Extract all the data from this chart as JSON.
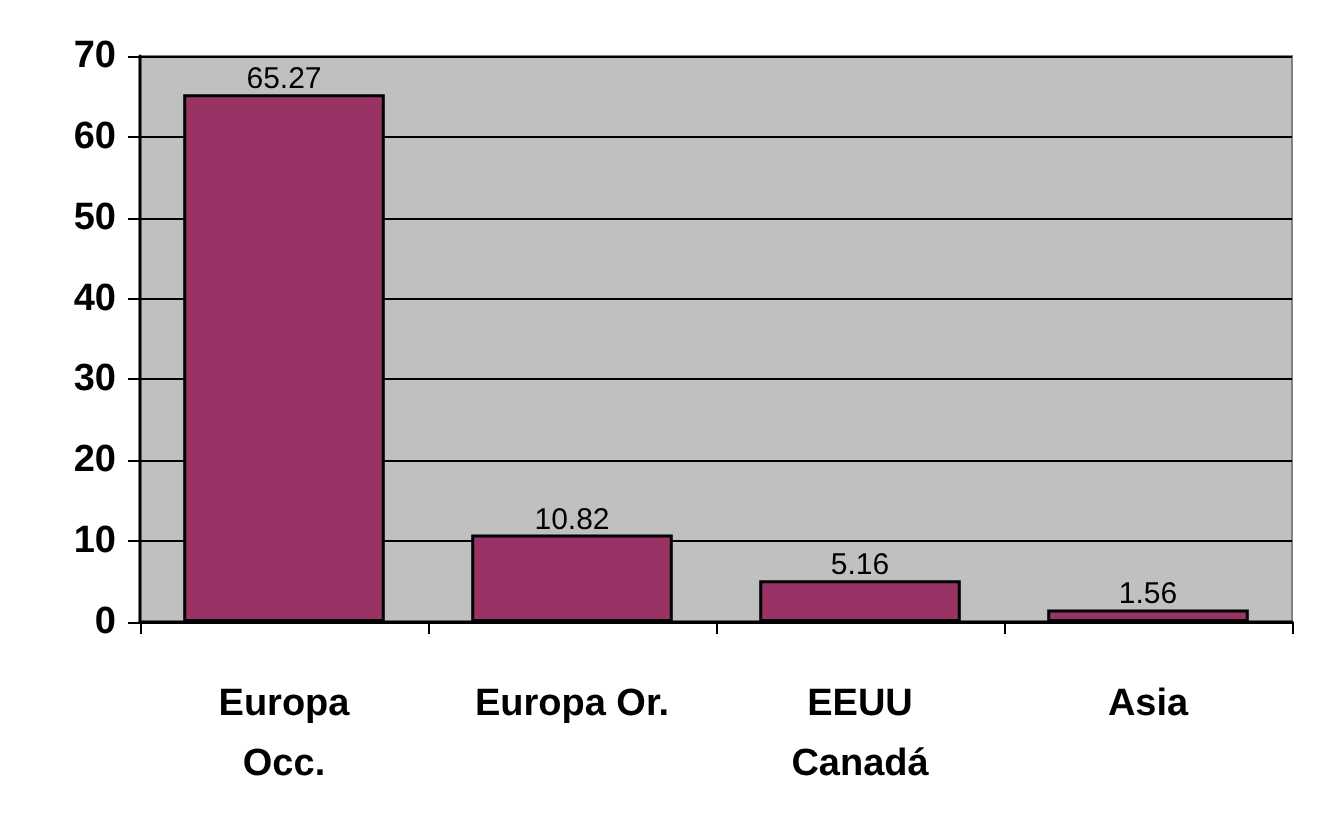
{
  "chart_data": {
    "type": "bar",
    "categories": [
      "Europa\nOcc.",
      "Europa Or.",
      "EEUU\nCanadá",
      "Asia"
    ],
    "values": [
      65.27,
      10.82,
      5.16,
      1.56
    ],
    "color": "#993366",
    "ylim": [
      0,
      70
    ],
    "yticks": [
      0,
      10,
      20,
      30,
      40,
      50,
      60,
      70
    ],
    "grid": "y",
    "data_labels": true
  }
}
